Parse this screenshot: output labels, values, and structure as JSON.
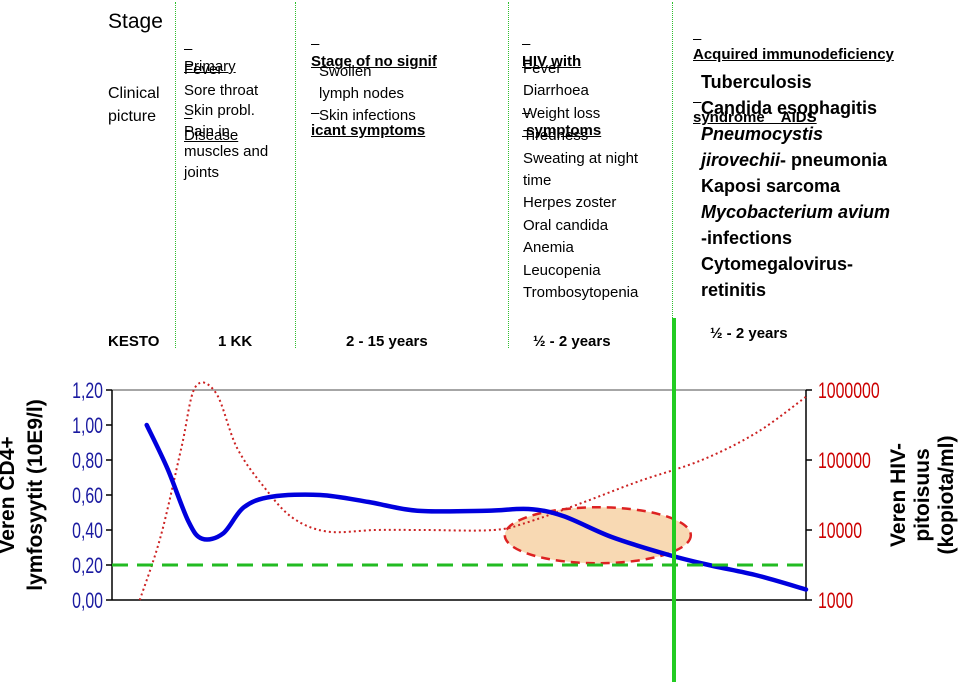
{
  "table": {
    "row_labels": {
      "stage": "Stage",
      "clinical_picture": [
        "Clinical",
        "picture"
      ],
      "kesto": "KESTO"
    },
    "columns": [
      {
        "stage": [
          "Primary",
          "Disease"
        ],
        "clinical": [
          "Fever",
          "Sore throat",
          "Skin probl.",
          "Pain in",
          "muscles and",
          "joints"
        ],
        "duration": "1 KK"
      },
      {
        "stage": [
          "Stage of no signif",
          "icant symptoms"
        ],
        "clinical": [
          "Swollen",
          "lymph nodes",
          "Skin infections"
        ],
        "duration": "2 - 15 years"
      },
      {
        "stage": [
          "HIV with",
          " symptoms"
        ],
        "clinical": [
          "Fever",
          "Diarrhoea",
          "Weight loss",
          "Tiredness",
          "Sweating at night",
          "time",
          "Herpes zoster",
          "Oral candida",
          "Anemia",
          "Leucopenia",
          "Trombosytopenia"
        ],
        "duration": "½ - 2 years"
      },
      {
        "stage": [
          "Acquired immunodeficiency",
          "syndrome    AIDS"
        ],
        "clinical_aids": {
          "line1": "Tuberculosis",
          "line2": "Candida esophagitis",
          "line3_italic": "Pneumocystis",
          "line4_italic": "jirovechii",
          "line4_rest": "- pneumonia",
          "line5": "Kaposi sarcoma",
          "line6_italic": "Mycobacterium avium",
          "line7": "-infections",
          "line8": "Cytomegalovirus-",
          "line9": "retinitis"
        },
        "duration": "½ - 2 years"
      }
    ]
  },
  "chart_data": {
    "type": "line",
    "y_left": {
      "label": [
        "Veren CD4+",
        "lymfosyytit (10E9/l)"
      ],
      "ticks": [
        "0,00",
        "0,20",
        "0,40",
        "0,60",
        "0,80",
        "1,00",
        "1,20"
      ],
      "range": [
        0,
        1.2
      ]
    },
    "y_right": {
      "label": [
        "Veren HIV-",
        "pitoisuus",
        "(kopiota/ml)"
      ],
      "ticks": [
        "1000",
        "10000",
        "100000",
        "1000000"
      ],
      "scale": "log",
      "range": [
        1000,
        1000000
      ],
      "color": "#cc0000"
    },
    "series": [
      {
        "color": "#0000dd",
        "style": "solid",
        "axis": "left",
        "points": [
          [
            0.05,
            1.0
          ],
          [
            0.08,
            0.75
          ],
          [
            0.11,
            0.45
          ],
          [
            0.13,
            0.35
          ],
          [
            0.16,
            0.38
          ],
          [
            0.19,
            0.53
          ],
          [
            0.23,
            0.59
          ],
          [
            0.3,
            0.6
          ],
          [
            0.37,
            0.56
          ],
          [
            0.44,
            0.51
          ],
          [
            0.54,
            0.51
          ],
          [
            0.6,
            0.52
          ],
          [
            0.65,
            0.48
          ],
          [
            0.72,
            0.36
          ],
          [
            0.8,
            0.26
          ],
          [
            0.86,
            0.2
          ],
          [
            0.93,
            0.14
          ],
          [
            1.0,
            0.06
          ]
        ]
      },
      {
        "color": "#cc2222",
        "style": "dotted",
        "axis": "right",
        "points": [
          [
            0.04,
            1000
          ],
          [
            0.07,
            8000
          ],
          [
            0.1,
            150000
          ],
          [
            0.12,
            1100000
          ],
          [
            0.15,
            900000
          ],
          [
            0.18,
            150000
          ],
          [
            0.22,
            40000
          ],
          [
            0.26,
            15000
          ],
          [
            0.31,
            9500
          ],
          [
            0.38,
            10000
          ],
          [
            0.45,
            10000
          ],
          [
            0.55,
            10000
          ],
          [
            0.6,
            13000
          ],
          [
            0.68,
            25000
          ],
          [
            0.76,
            50000
          ],
          [
            0.85,
            100000
          ],
          [
            0.93,
            250000
          ],
          [
            1.0,
            800000
          ]
        ]
      }
    ],
    "threshold": {
      "value": 0.2,
      "color": "#22bb22"
    },
    "aids_marker": {
      "x": 0.82,
      "color": "#22cc22"
    },
    "highlight": {
      "x_center": 0.7,
      "y_center": 0.37,
      "fill": "#f8d9b3",
      "stroke": "#dd2222"
    }
  }
}
